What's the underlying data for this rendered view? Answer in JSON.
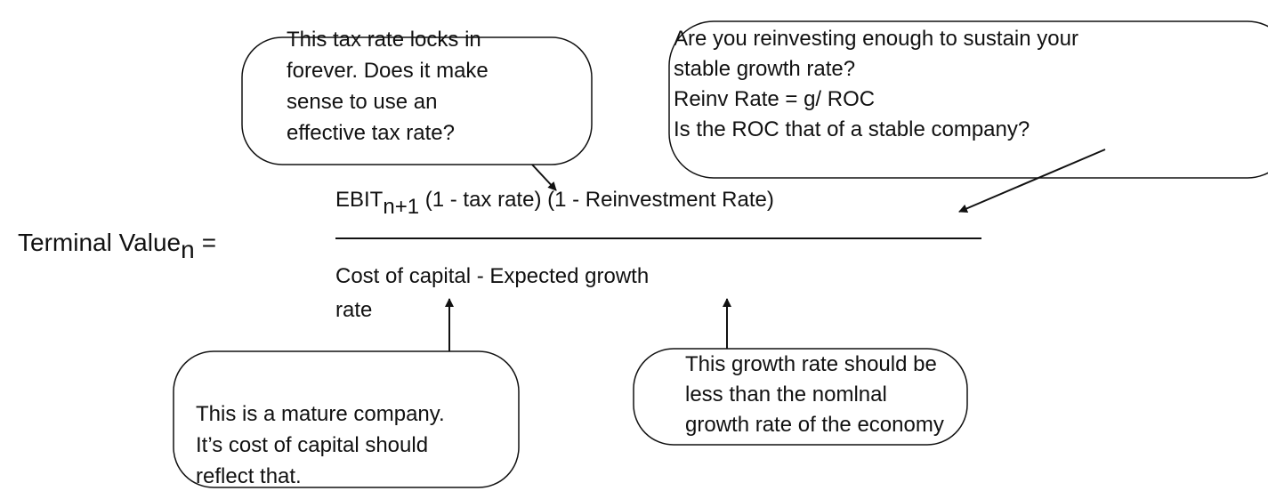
{
  "formula": {
    "lhs": "Terminal Value",
    "lhs_subscript": "n",
    "equals": "=",
    "numerator": {
      "term": "EBIT",
      "subscript": "n+1",
      "rest": " (1 - tax rate) (1 - Reinvestment Rate)"
    },
    "denominator": [
      "Cost of capital - Expected growth",
      "rate"
    ]
  },
  "callouts": [
    {
      "lines": [
        "This tax rate locks in",
        "forever. Does it make",
        "sense to use an",
        "effective tax rate?"
      ]
    },
    {
      "lines": [
        "Are you reinvesting enough to sustain your",
        "stable growth rate?",
        "Reinv Rate = g/ ROC",
        "Is the ROC that of a stable company?"
      ]
    },
    {
      "lines": [
        "This is a mature company.",
        "It’s cost of capital should",
        "reflect that."
      ]
    },
    {
      "lines": [
        "This growth rate should be",
        "less than the nomlnal",
        "growth rate of the economy"
      ]
    }
  ]
}
